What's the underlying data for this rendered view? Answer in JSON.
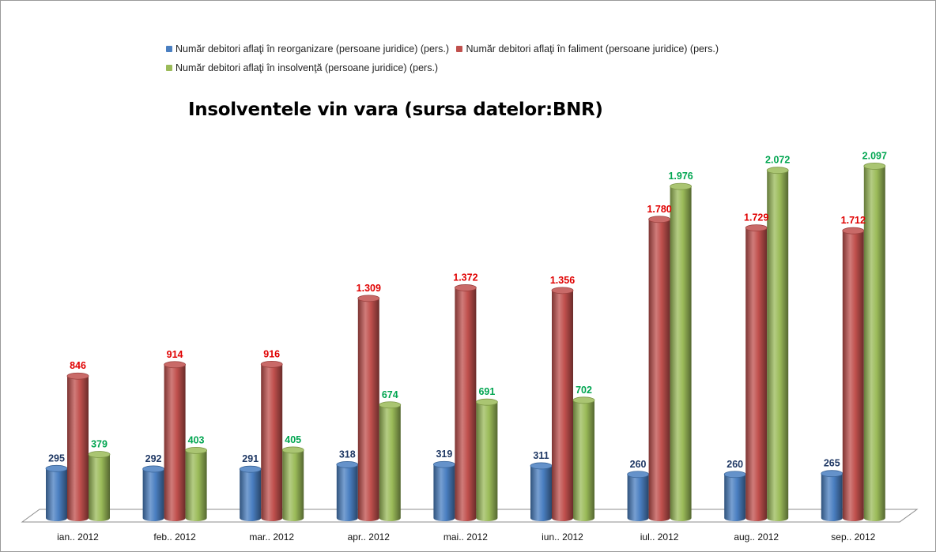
{
  "chart_data": {
    "type": "bar",
    "title": "Insolventele vin vara (sursa datelor:BNR)",
    "categories": [
      "ian.. 2012",
      "feb.. 2012",
      "mar.. 2012",
      "apr.. 2012",
      "mai.. 2012",
      "iun.. 2012",
      "iul.. 2012",
      "aug.. 2012",
      "sep.. 2012"
    ],
    "series": [
      {
        "name": "Număr debitori aflaţi în reorganizare (persoane juridice) (pers.)",
        "color": "#4a7fc1",
        "label_color": "#1f3864",
        "values": [
          295,
          292,
          291,
          318,
          319,
          311,
          260,
          260,
          265
        ],
        "labels": [
          "295",
          "292",
          "291",
          "318",
          "319",
          "311",
          "260",
          "260",
          "265"
        ]
      },
      {
        "name": "Număr debitori aflaţi în faliment (persoane juridice) (pers.)",
        "color": "#c0504d",
        "label_color": "#e00000",
        "values": [
          846,
          914,
          916,
          1309,
          1372,
          1356,
          1780,
          1729,
          1712
        ],
        "labels": [
          "846",
          "914",
          "916",
          "1.309",
          "1.372",
          "1.356",
          "1.780",
          "1.729",
          "1.712"
        ]
      },
      {
        "name": "Număr debitori aflaţi în insolvenţă (persoane juridice) (pers.)",
        "color": "#9bbb59",
        "label_color": "#00a550",
        "values": [
          379,
          403,
          405,
          674,
          691,
          702,
          1976,
          2072,
          2097
        ],
        "labels": [
          "379",
          "403",
          "405",
          "674",
          "691",
          "702",
          "1.976",
          "2.072",
          "2.097"
        ]
      }
    ],
    "ylim": [
      0,
      2300
    ],
    "grid": false,
    "legend_position": "top"
  }
}
